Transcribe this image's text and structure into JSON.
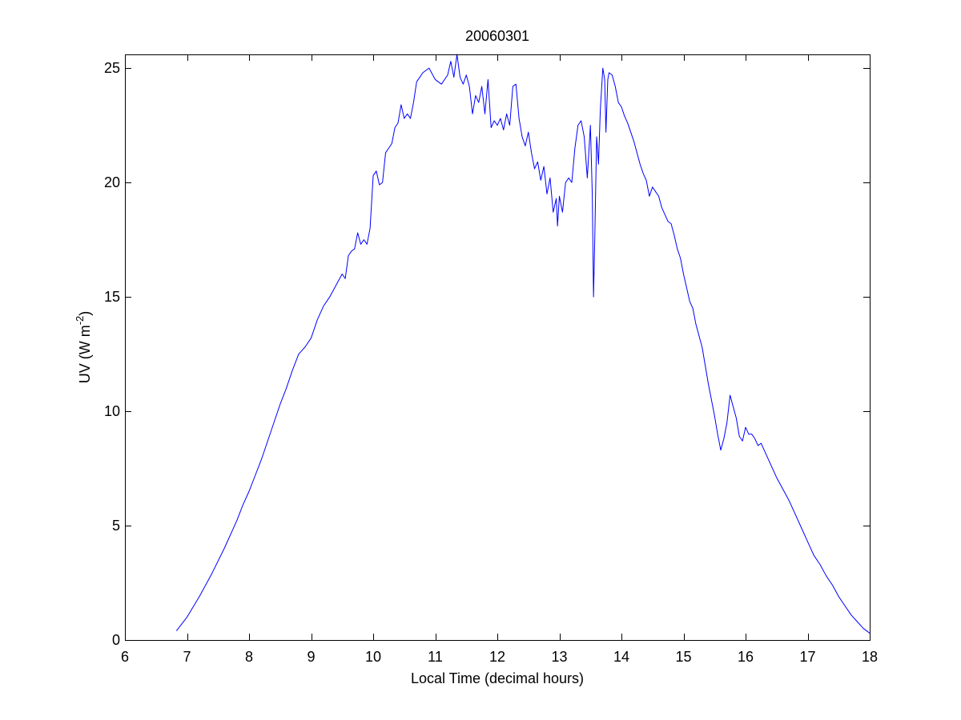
{
  "chart_data": {
    "type": "line",
    "title": "20060301",
    "xlabel": "Local Time (decimal hours)",
    "ylabel": {
      "base": "UV (W m",
      "superscript": "-2",
      "close": ")"
    },
    "xlim": [
      6,
      18
    ],
    "ylim": [
      0,
      25.6
    ],
    "xticks": [
      "6",
      "7",
      "8",
      "9",
      "10",
      "11",
      "12",
      "13",
      "14",
      "15",
      "16",
      "17",
      "18"
    ],
    "yticks": [
      "0",
      "5",
      "10",
      "15",
      "20",
      "25"
    ],
    "grid": false,
    "legend": "none",
    "line_color": "#0000ff",
    "series": [
      {
        "x": [
          6.83,
          7.0,
          7.2,
          7.4,
          7.6,
          7.8,
          7.9,
          8.0,
          8.1,
          8.2,
          8.3,
          8.4,
          8.5,
          8.6,
          8.7,
          8.8,
          8.9,
          9.0,
          9.1,
          9.2,
          9.3,
          9.4,
          9.5,
          9.55,
          9.6,
          9.65,
          9.7,
          9.75,
          9.8,
          9.85,
          9.9,
          9.95,
          10.0,
          10.05,
          10.1,
          10.15,
          10.2,
          10.25,
          10.3,
          10.35,
          10.4,
          10.45,
          10.5,
          10.55,
          10.6,
          10.65,
          10.7,
          10.75,
          10.8,
          10.9,
          11.0,
          11.1,
          11.2,
          11.25,
          11.3,
          11.35,
          11.4,
          11.45,
          11.5,
          11.55,
          11.6,
          11.65,
          11.7,
          11.75,
          11.8,
          11.85,
          11.9,
          11.95,
          12.0,
          12.05,
          12.1,
          12.15,
          12.2,
          12.25,
          12.3,
          12.35,
          12.4,
          12.45,
          12.5,
          12.55,
          12.6,
          12.65,
          12.7,
          12.75,
          12.8,
          12.85,
          12.9,
          12.95,
          12.97,
          13.0,
          13.05,
          13.1,
          13.15,
          13.2,
          13.25,
          13.3,
          13.35,
          13.4,
          13.45,
          13.5,
          13.53,
          13.55,
          13.57,
          13.6,
          13.63,
          13.66,
          13.7,
          13.73,
          13.75,
          13.78,
          13.8,
          13.85,
          13.9,
          13.95,
          14.0,
          14.05,
          14.1,
          14.15,
          14.2,
          14.25,
          14.3,
          14.35,
          14.4,
          14.45,
          14.5,
          14.55,
          14.6,
          14.65,
          14.7,
          14.75,
          14.8,
          14.85,
          14.9,
          14.95,
          15.0,
          15.05,
          15.1,
          15.15,
          15.2,
          15.25,
          15.3,
          15.35,
          15.4,
          15.45,
          15.5,
          15.55,
          15.6,
          15.65,
          15.7,
          15.75,
          15.8,
          15.85,
          15.9,
          15.95,
          16.0,
          16.05,
          16.1,
          16.15,
          16.2,
          16.25,
          16.3,
          16.4,
          16.5,
          16.6,
          16.7,
          16.8,
          16.9,
          17.0,
          17.1,
          17.2,
          17.3,
          17.4,
          17.5,
          17.6,
          17.7,
          17.8,
          17.9,
          18.0
        ],
        "y": [
          0.4,
          1.0,
          1.9,
          2.9,
          4.0,
          5.2,
          5.9,
          6.5,
          7.2,
          7.9,
          8.7,
          9.5,
          10.3,
          11.0,
          11.8,
          12.5,
          12.8,
          13.2,
          14.0,
          14.6,
          15.0,
          15.5,
          16.0,
          15.8,
          16.8,
          17.0,
          17.1,
          17.8,
          17.3,
          17.5,
          17.3,
          18.0,
          20.3,
          20.5,
          19.9,
          20.0,
          21.3,
          21.5,
          21.7,
          22.4,
          22.6,
          23.4,
          22.8,
          23.0,
          22.8,
          23.5,
          24.4,
          24.6,
          24.8,
          25.0,
          24.5,
          24.3,
          24.7,
          25.3,
          24.6,
          25.6,
          24.6,
          24.3,
          24.7,
          24.2,
          23.0,
          23.8,
          23.5,
          24.2,
          23.0,
          24.5,
          22.4,
          22.7,
          22.5,
          22.8,
          22.3,
          23.0,
          22.5,
          24.2,
          24.3,
          22.8,
          22.0,
          21.6,
          22.2,
          21.3,
          20.6,
          20.9,
          20.1,
          20.7,
          19.5,
          20.2,
          18.7,
          19.3,
          18.1,
          19.4,
          18.7,
          20.0,
          20.2,
          20.0,
          21.5,
          22.5,
          22.7,
          22.0,
          20.2,
          22.5,
          19.5,
          15.0,
          17.5,
          22.0,
          20.8,
          23.2,
          25.0,
          24.5,
          22.2,
          24.5,
          24.8,
          24.7,
          24.2,
          23.5,
          23.3,
          22.9,
          22.6,
          22.2,
          21.8,
          21.3,
          20.8,
          20.4,
          20.1,
          19.4,
          19.8,
          19.6,
          19.4,
          18.9,
          18.6,
          18.3,
          18.2,
          17.7,
          17.1,
          16.7,
          16.0,
          15.4,
          14.8,
          14.5,
          13.8,
          13.3,
          12.8,
          12.0,
          11.2,
          10.5,
          9.8,
          9.0,
          8.3,
          8.8,
          9.5,
          10.7,
          10.2,
          9.7,
          8.9,
          8.7,
          9.3,
          9.0,
          9.0,
          8.8,
          8.5,
          8.6,
          8.3,
          7.7,
          7.1,
          6.6,
          6.1,
          5.5,
          4.9,
          4.3,
          3.7,
          3.3,
          2.8,
          2.4,
          1.9,
          1.5,
          1.1,
          0.8,
          0.5,
          0.3
        ]
      }
    ]
  }
}
